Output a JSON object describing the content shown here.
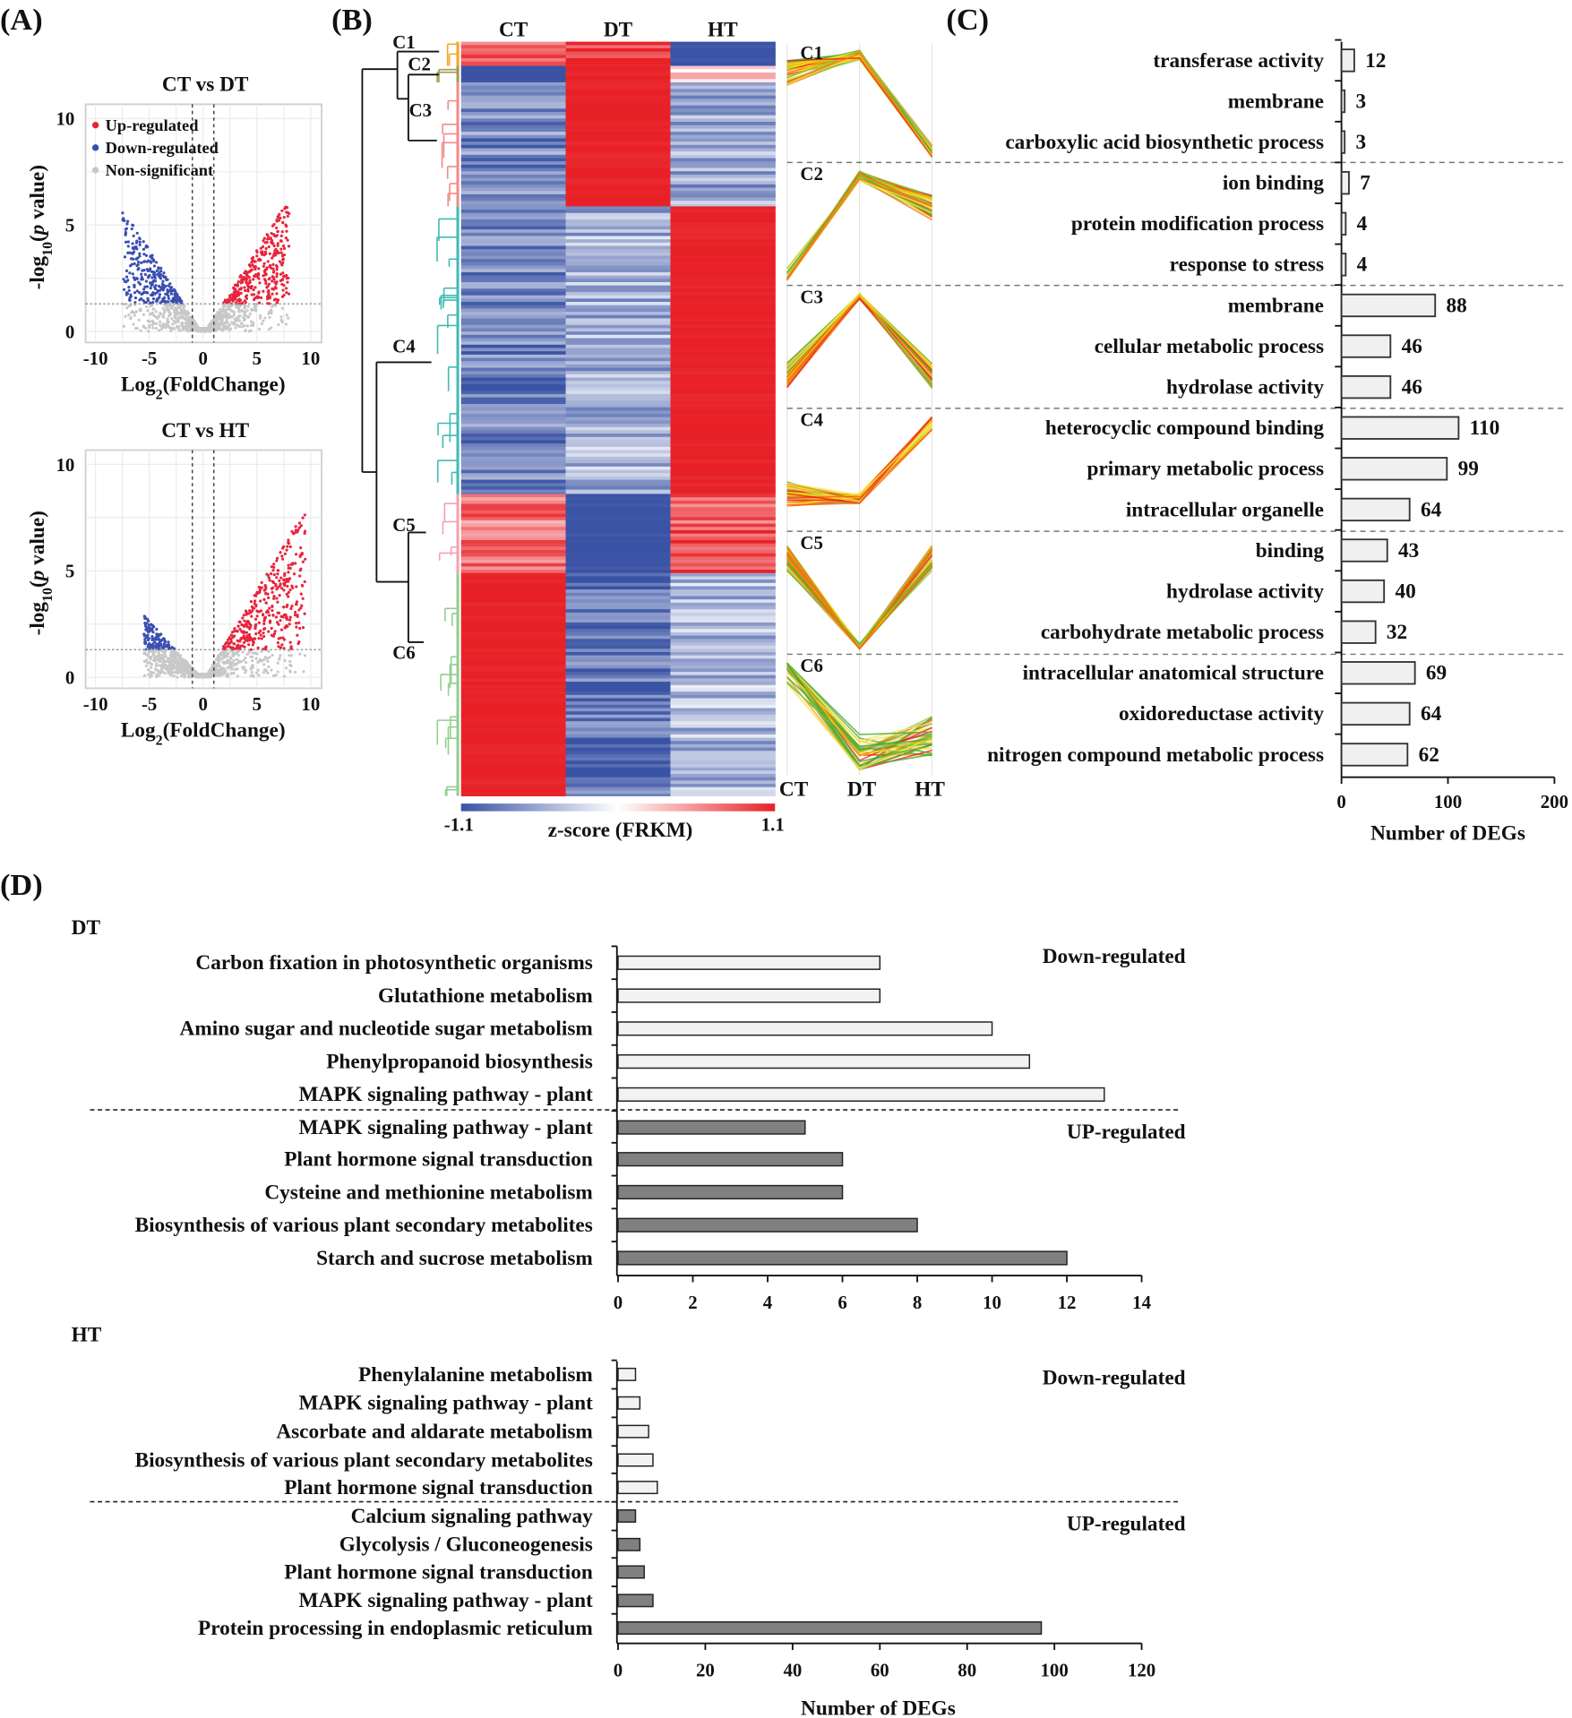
{
  "panel_labels": [
    "(A)",
    "(B)",
    "(C)",
    "(D)"
  ],
  "chart_data": [
    {
      "type": "scatter",
      "title": "CT vs DT",
      "xlabel": {
        "base": "Log",
        "sub": "2",
        "rest": "(FoldChange)"
      },
      "ylabel": {
        "pre": "-log",
        "sub": "10",
        "open": "(",
        "italic": "p",
        "rest": " value)"
      },
      "xlim": [
        -10,
        10
      ],
      "ylim": [
        0,
        10
      ],
      "xticks": [
        -10,
        -5,
        0,
        5,
        10
      ],
      "yticks": [
        0,
        5,
        10
      ],
      "grid": true,
      "thresholds": {
        "log2_fold_change": [
          -1,
          1
        ],
        "neg_log10_p": 1.3
      },
      "legend": [
        "Up-regulated",
        "Down-regulated",
        "Non-significant"
      ],
      "legend_position": "top-left",
      "colors": {
        "up": "#e8243c",
        "down": "#3b4fb0",
        "ns": "#c8c8c8"
      }
    },
    {
      "type": "scatter",
      "title": "CT vs HT",
      "xlabel": {
        "base": "Log",
        "sub": "2",
        "rest": "(FoldChange)"
      },
      "ylabel": {
        "pre": "-log",
        "sub": "10",
        "open": "(",
        "italic": "p",
        "rest": " value)"
      },
      "xlim": [
        -10,
        10
      ],
      "ylim": [
        0,
        10
      ],
      "xticks": [
        -10,
        -5,
        0,
        5,
        10
      ],
      "yticks": [
        0,
        5,
        10
      ],
      "grid": true,
      "thresholds": {
        "log2_fold_change": [
          -1,
          1
        ],
        "neg_log10_p": 1.3
      },
      "colors": {
        "up": "#e8243c",
        "down": "#3b4fb0",
        "ns": "#c8c8c8"
      }
    },
    {
      "type": "heatmap",
      "columns": [
        "CT",
        "DT",
        "HT"
      ],
      "clusters": [
        {
          "name": "C1",
          "values": [
            0.8,
            1.0,
            -1.1
          ],
          "color": "#f5a623"
        },
        {
          "name": "C2",
          "values": [
            -1.1,
            1.1,
            0.2
          ],
          "color": "#a39a4c"
        },
        {
          "name": "C3",
          "values": [
            -0.75,
            1.1,
            -0.55
          ],
          "color": "#f28a8a"
        },
        {
          "name": "C4",
          "values": [
            -0.8,
            -0.5,
            1.1
          ],
          "color": "#3fbcb4"
        },
        {
          "name": "C5",
          "values": [
            0.7,
            -1.1,
            0.8
          ],
          "color": "#f2a2b4"
        },
        {
          "name": "C6",
          "values": [
            1.1,
            -0.9,
            -0.45
          ],
          "color": "#92cf8e"
        }
      ],
      "colorbar": {
        "min": -1.1,
        "max": 1.1,
        "min_label": "-1.1",
        "max_label": "1.1",
        "label": "z-score (FRKM)"
      },
      "colors": {
        "low": "#3a53a4",
        "mid": "#ffffff",
        "high": "#e82127"
      }
    },
    {
      "type": "line",
      "x": [
        "CT",
        "DT",
        "HT"
      ],
      "clusters": [
        {
          "name": "C1",
          "profile": [
            0.7,
            1.1,
            -1.2
          ]
        },
        {
          "name": "C2",
          "profile": [
            -1.2,
            1.1,
            0.4
          ]
        },
        {
          "name": "C3",
          "profile": [
            -0.6,
            1.2,
            -0.6
          ]
        },
        {
          "name": "C4",
          "profile": [
            -0.5,
            -0.6,
            1.2
          ]
        },
        {
          "name": "C5",
          "profile": [
            0.8,
            -1.2,
            0.8
          ]
        },
        {
          "name": "C6",
          "profile": [
            1.2,
            -0.9,
            -0.4
          ]
        }
      ],
      "line_colors": [
        "#e8211f",
        "#f46d0e",
        "#f7c600",
        "#f9e24a",
        "#8cc43c",
        "#4caa3a"
      ]
    },
    {
      "type": "bar",
      "orientation": "horizontal",
      "categories": [
        "transferase activity",
        "membrane",
        "carboxylic acid biosynthetic process",
        "ion binding",
        "protein modification process",
        "response to stress",
        "membrane",
        "cellular metabolic process",
        "hydrolase activity",
        "heterocyclic compound binding",
        "primary metabolic process",
        "intracellular organelle",
        "binding",
        "hydrolase activity",
        "carbohydrate metabolic process",
        "intracellular anatomical structure",
        "oxidoreductase activity",
        "nitrogen compound metabolic process"
      ],
      "values": [
        12,
        3,
        3,
        7,
        4,
        4,
        88,
        46,
        46,
        110,
        99,
        64,
        43,
        40,
        32,
        69,
        64,
        62
      ],
      "groups": [
        "C1",
        "C1",
        "C1",
        "C2",
        "C2",
        "C2",
        "C3",
        "C3",
        "C3",
        "C4",
        "C4",
        "C4",
        "C5",
        "C5",
        "C5",
        "C6",
        "C6",
        "C6"
      ],
      "xlim": [
        0,
        200
      ],
      "xticks": [
        0,
        100,
        200
      ],
      "xlabel": "Number  of DEGs",
      "bar_color": "#f0f0f0"
    },
    {
      "type": "bar",
      "orientation": "horizontal",
      "title": "DT",
      "categories": [
        "Carbon fixation in photosynthetic organisms",
        "Glutathione metabolism",
        "Amino sugar and nucleotide sugar metabolism",
        "Phenylpropanoid biosynthesis",
        "MAPK signaling pathway - plant",
        "MAPK signaling pathway - plant",
        "Plant hormone signal transduction",
        "Cysteine and methionine metabolism",
        "Biosynthesis of various plant secondary metabolites",
        "Starch and sucrose metabolism"
      ],
      "values": [
        7,
        7,
        10,
        11,
        13,
        5,
        6,
        6,
        8,
        12
      ],
      "groups": [
        "Down-regulated",
        "Down-regulated",
        "Down-regulated",
        "Down-regulated",
        "Down-regulated",
        "UP-regulated",
        "UP-regulated",
        "UP-regulated",
        "UP-regulated",
        "UP-regulated"
      ],
      "group_labels": [
        "Down-regulated",
        "UP-regulated"
      ],
      "xlim": [
        0,
        14
      ],
      "xticks": [
        0,
        2,
        4,
        6,
        8,
        10,
        12,
        14
      ],
      "colors": {
        "down": "#f2f2f2",
        "up": "#808080"
      }
    },
    {
      "type": "bar",
      "orientation": "horizontal",
      "title": "HT",
      "categories": [
        "Phenylalanine metabolism",
        "MAPK signaling pathway - plant",
        "Ascorbate and aldarate metabolism",
        "Biosynthesis of various plant secondary metabolites",
        "Plant hormone signal transduction",
        "Calcium signaling pathway",
        "Glycolysis / Gluconeogenesis",
        "Plant hormone signal transduction",
        "MAPK signaling pathway - plant",
        "Protein processing in endoplasmic reticulum"
      ],
      "values": [
        4,
        5,
        7,
        8,
        9,
        4,
        5,
        6,
        8,
        97
      ],
      "groups": [
        "Down-regulated",
        "Down-regulated",
        "Down-regulated",
        "Down-regulated",
        "Down-regulated",
        "UP-regulated",
        "UP-regulated",
        "UP-regulated",
        "UP-regulated",
        "UP-regulated"
      ],
      "group_labels": [
        "Down-regulated",
        "UP-regulated"
      ],
      "xlim": [
        0,
        120
      ],
      "xticks": [
        0,
        20,
        40,
        60,
        80,
        100,
        120
      ],
      "xlabel": "Number  of DEGs",
      "colors": {
        "down": "#f2f2f2",
        "up": "#808080"
      }
    }
  ]
}
